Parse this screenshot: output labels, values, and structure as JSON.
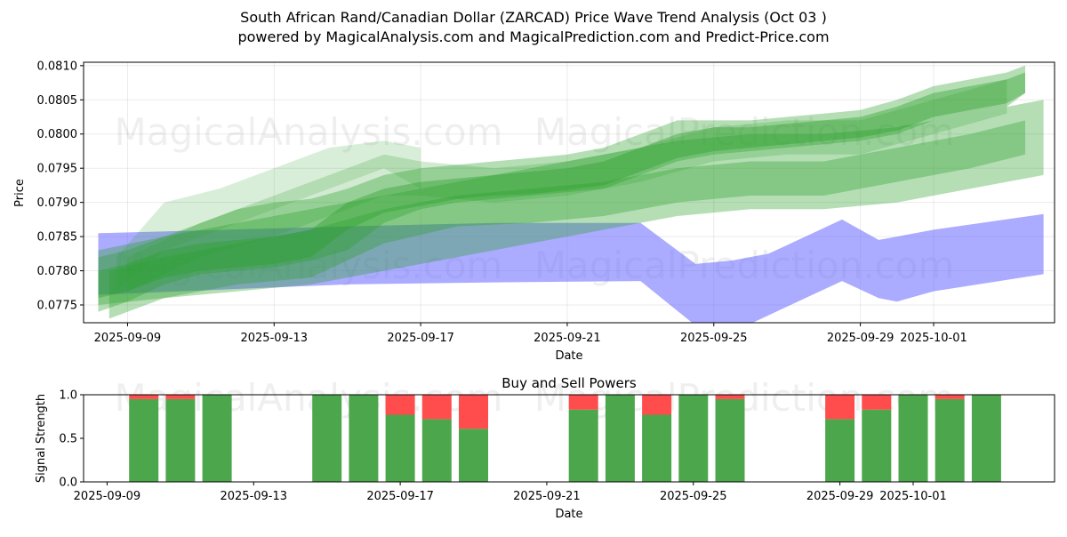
{
  "figure": {
    "title_line1": "South African Rand/Canadian Dollar (ZARCAD) Price Wave Trend Analysis (Oct 03 )",
    "title_line2": "powered by MagicalAnalysis.com and MagicalPrediction.com and Predict-Price.com",
    "watermarks": [
      "MagicalAnalysis.com",
      "MagicalPrediction.com"
    ]
  },
  "chart_data": [
    {
      "type": "area",
      "name": "price-wave-trend",
      "title": "",
      "xlabel": "Date",
      "ylabel": "Price",
      "x_ticks": [
        "2025-09-09",
        "2025-09-13",
        "2025-09-17",
        "2025-09-21",
        "2025-09-25",
        "2025-09-29",
        "2025-10-01"
      ],
      "y_ticks": [
        "0.0775",
        "0.0780",
        "0.0785",
        "0.0790",
        "0.0795",
        "0.0800",
        "0.0805",
        "0.0810"
      ],
      "xlim_day_offset": [
        -1.2,
        25.3
      ],
      "ylim": [
        0.07724,
        0.08105
      ],
      "x_origin_date": "2025-09-09",
      "colors": {
        "green": "#2ca02c",
        "blue": "#6666ff"
      },
      "green_bands": [
        {
          "x": [
            -0.8,
            0,
            1,
            2,
            3,
            4,
            5,
            6,
            7,
            8,
            9,
            10,
            11,
            12,
            13,
            14,
            15,
            16,
            17,
            18,
            19,
            20,
            21,
            22,
            23,
            24,
            24.5
          ],
          "lower": [
            0.0774,
            0.07755,
            0.0778,
            0.07795,
            0.078,
            0.07805,
            0.07815,
            0.0783,
            0.0787,
            0.0789,
            0.079,
            0.07905,
            0.0791,
            0.07915,
            0.0792,
            0.0794,
            0.0796,
            0.0797,
            0.07975,
            0.0798,
            0.07985,
            0.0799,
            0.08,
            0.0802,
            0.0803,
            0.0804,
            0.0806
          ],
          "upper": [
            0.0782,
            0.0783,
            0.0785,
            0.0787,
            0.0789,
            0.079,
            0.07905,
            0.0792,
            0.0794,
            0.0795,
            0.07955,
            0.0796,
            0.07965,
            0.0797,
            0.0798,
            0.08,
            0.0802,
            0.0802,
            0.0802,
            0.08025,
            0.0803,
            0.08035,
            0.0805,
            0.0807,
            0.0808,
            0.0809,
            0.081
          ],
          "opacity": 0.35
        },
        {
          "x": [
            -0.8,
            0,
            1,
            2,
            3,
            4,
            5,
            6,
            7,
            8,
            9,
            10,
            11,
            12,
            13,
            14,
            15,
            16,
            17,
            18,
            19,
            20,
            21,
            22,
            23,
            24,
            24.5
          ],
          "lower": [
            0.0776,
            0.0777,
            0.0779,
            0.078,
            0.07805,
            0.0781,
            0.0782,
            0.0786,
            0.07885,
            0.07895,
            0.07905,
            0.0791,
            0.07912,
            0.07918,
            0.07925,
            0.07945,
            0.07965,
            0.07975,
            0.0798,
            0.07985,
            0.0799,
            0.07995,
            0.08005,
            0.08025,
            0.08035,
            0.08045,
            0.0806
          ],
          "upper": [
            0.078,
            0.0781,
            0.0783,
            0.0784,
            0.07845,
            0.0785,
            0.0786,
            0.079,
            0.0792,
            0.0793,
            0.07935,
            0.0794,
            0.07945,
            0.0795,
            0.0796,
            0.0798,
            0.08,
            0.0801,
            0.0801,
            0.08015,
            0.0802,
            0.08025,
            0.0804,
            0.0806,
            0.0807,
            0.0808,
            0.0809
          ],
          "opacity": 0.4
        },
        {
          "x": [
            0,
            2,
            4,
            6,
            7,
            8,
            10,
            12,
            14,
            16,
            18,
            20,
            22,
            24
          ],
          "lower": [
            0.0777,
            0.0782,
            0.0785,
            0.0789,
            0.0791,
            0.0791,
            0.079,
            0.0791,
            0.0793,
            0.0796,
            0.0797,
            0.0797,
            0.08,
            0.0803
          ],
          "upper": [
            0.0782,
            0.0787,
            0.0791,
            0.0795,
            0.0797,
            0.0796,
            0.0795,
            0.0796,
            0.0798,
            0.0801,
            0.0802,
            0.0802,
            0.0805,
            0.0808
          ],
          "opacity": 0.22
        },
        {
          "x": [
            -0.5,
            1,
            3,
            5,
            7,
            9,
            11,
            13,
            15,
            17,
            19,
            21,
            23,
            24.5
          ],
          "lower": [
            0.0773,
            0.0776,
            0.0778,
            0.0779,
            0.0784,
            0.07865,
            0.0787,
            0.0788,
            0.079,
            0.0791,
            0.0791,
            0.0793,
            0.0795,
            0.0797
          ],
          "upper": [
            0.078,
            0.0782,
            0.0784,
            0.0786,
            0.0789,
            0.0791,
            0.0792,
            0.0793,
            0.0795,
            0.0796,
            0.0796,
            0.0798,
            0.08,
            0.0802
          ],
          "opacity": 0.35
        },
        {
          "x": [
            -0.8,
            1,
            3,
            5,
            7,
            9,
            11,
            13,
            15,
            17,
            19,
            21,
            23,
            25
          ],
          "lower": [
            0.0775,
            0.0776,
            0.0777,
            0.0778,
            0.078,
            0.0782,
            0.0784,
            0.0786,
            0.0788,
            0.0789,
            0.0789,
            0.079,
            0.0792,
            0.0794
          ],
          "upper": [
            0.0783,
            0.0785,
            0.0787,
            0.0789,
            0.0791,
            0.0793,
            0.0795,
            0.0797,
            0.0799,
            0.08,
            0.08,
            0.0801,
            0.0803,
            0.0805
          ],
          "opacity": 0.35
        },
        {
          "x": [
            -0.3,
            1,
            2.5,
            4,
            5.5,
            7,
            8
          ],
          "lower": [
            0.0777,
            0.0783,
            0.0786,
            0.0789,
            0.0792,
            0.0795,
            0.0792
          ],
          "upper": [
            0.0782,
            0.079,
            0.0792,
            0.0795,
            0.0798,
            0.0799,
            0.0798
          ],
          "opacity": 0.18
        }
      ],
      "blue_band": {
        "x": [
          -0.8,
          6,
          10,
          14,
          15.5,
          16.5,
          17.5,
          18.5,
          19.5,
          20.5,
          21,
          22,
          25
        ],
        "lower": [
          0.07765,
          0.0778,
          0.07783,
          0.07785,
          0.0772,
          0.0771,
          0.07735,
          0.0776,
          0.07785,
          0.0776,
          0.07755,
          0.0777,
          0.07795
        ],
        "upper": [
          0.07855,
          0.07865,
          0.0787,
          0.0787,
          0.0781,
          0.07815,
          0.07825,
          0.0785,
          0.07875,
          0.07845,
          0.0785,
          0.0786,
          0.07883
        ],
        "opacity": 0.55
      }
    },
    {
      "type": "bar",
      "name": "buy-and-sell-powers",
      "title": "Buy and Sell Powers",
      "xlabel": "Date",
      "ylabel": "Signal Strength",
      "ylim": [
        0,
        1
      ],
      "y_ticks": [
        "0.0",
        "0.5",
        "1.0"
      ],
      "x_ticks": [
        "2025-09-09",
        "2025-09-13",
        "2025-09-17",
        "2025-09-21",
        "2025-09-25",
        "2025-09-29",
        "2025-10-01"
      ],
      "xlim_day_offset": [
        -1.2,
        25.3
      ],
      "x_origin_date": "2025-09-09",
      "buy_color": "#4ca64c",
      "sell_color": "#ff4c4c",
      "bars": [
        {
          "day": 1,
          "buy": 0.95,
          "sell": 0.05
        },
        {
          "day": 2,
          "buy": 0.95,
          "sell": 0.05
        },
        {
          "day": 3,
          "buy": 1.0,
          "sell": 0.0
        },
        {
          "day": 6,
          "buy": 1.0,
          "sell": 0.0
        },
        {
          "day": 7,
          "buy": 1.0,
          "sell": 0.0
        },
        {
          "day": 8,
          "buy": 0.77,
          "sell": 0.23
        },
        {
          "day": 9,
          "buy": 0.72,
          "sell": 0.28
        },
        {
          "day": 10,
          "buy": 0.61,
          "sell": 0.39
        },
        {
          "day": 13,
          "buy": 0.83,
          "sell": 0.17
        },
        {
          "day": 14,
          "buy": 1.0,
          "sell": 0.0
        },
        {
          "day": 15,
          "buy": 0.77,
          "sell": 0.23
        },
        {
          "day": 16,
          "buy": 1.0,
          "sell": 0.0
        },
        {
          "day": 17,
          "buy": 0.95,
          "sell": 0.05
        },
        {
          "day": 20,
          "buy": 0.72,
          "sell": 0.28
        },
        {
          "day": 21,
          "buy": 0.83,
          "sell": 0.17
        },
        {
          "day": 22,
          "buy": 1.0,
          "sell": 0.0
        },
        {
          "day": 23,
          "buy": 0.95,
          "sell": 0.05
        },
        {
          "day": 24,
          "buy": 1.0,
          "sell": 0.0
        }
      ]
    }
  ]
}
